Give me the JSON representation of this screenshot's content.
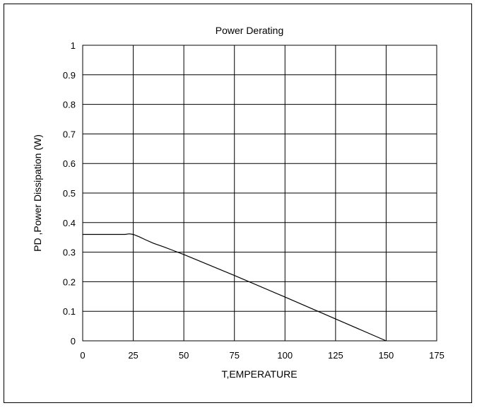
{
  "chart_data": {
    "type": "line",
    "title": "Power Derating",
    "xlabel": "T,EMPERATURE",
    "ylabel": "PD ,Power Dissipation (W)",
    "xlim": [
      0,
      175
    ],
    "ylim": [
      0,
      1
    ],
    "x_ticks": [
      0,
      25,
      50,
      75,
      100,
      125,
      150,
      175
    ],
    "x_tick_labels": [
      "0",
      "25",
      "50",
      "75",
      "100",
      "125",
      "150",
      "175"
    ],
    "y_ticks": [
      0,
      0.1,
      0.2,
      0.3,
      0.4,
      0.5,
      0.6,
      0.7,
      0.8,
      0.9,
      1
    ],
    "y_tick_labels": [
      "0",
      "0.1",
      "0.2",
      "0.3",
      "0.4",
      "0.5",
      "0.6",
      "0.7",
      "0.8",
      "0.9",
      "1"
    ],
    "grid": true,
    "legend": false,
    "line_color": "#000000",
    "series": [
      {
        "x": [
          0,
          21,
          23,
          25,
          28,
          31,
          35,
          40,
          45,
          50,
          75,
          100,
          125,
          150
        ],
        "y": [
          0.36,
          0.36,
          0.362,
          0.36,
          0.352,
          0.342,
          0.33,
          0.318,
          0.305,
          0.292,
          0.221,
          0.148,
          0.074,
          0
        ]
      }
    ]
  }
}
